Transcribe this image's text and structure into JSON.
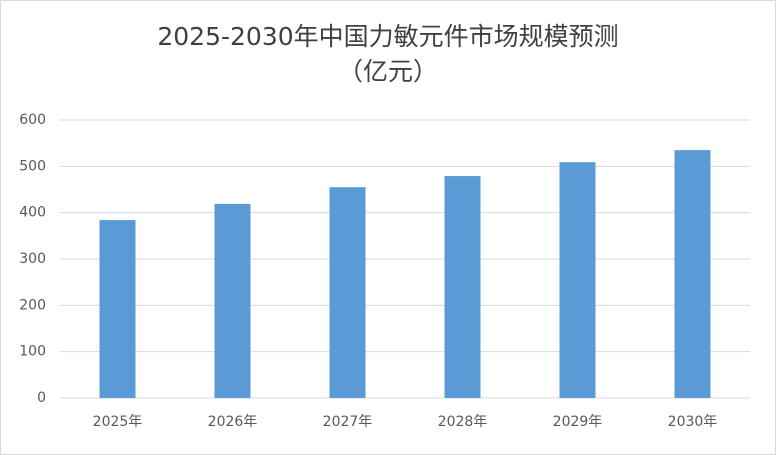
{
  "chart_data": {
    "type": "bar",
    "title": "2025-2030年中国力敏元件市场规模预测",
    "subtitle": "（亿元）",
    "categories": [
      "2025年",
      "2026年",
      "2027年",
      "2028年",
      "2029年",
      "2030年"
    ],
    "values": [
      384,
      419,
      455,
      479,
      509,
      535
    ],
    "color": "#5b9bd5",
    "ylim": [
      0,
      600
    ],
    "yticks": [
      0,
      100,
      200,
      300,
      400,
      500,
      600
    ],
    "grid": true
  }
}
